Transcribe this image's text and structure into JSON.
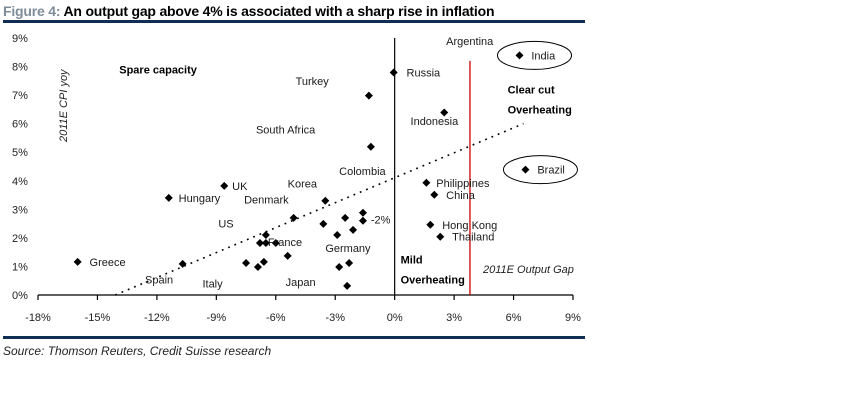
{
  "figure": {
    "number": "Figure 4:",
    "title": "An output gap above 4% is associated with a sharp rise in inflation",
    "source": "Source: Thomson Reuters, Credit Suisse research"
  },
  "colors": {
    "rule": "#0f2e52",
    "threshold_line": "#cc0000",
    "points": "#000000"
  },
  "chart_data": {
    "type": "scatter",
    "title": "An output gap above 4% is associated with a sharp rise in inflation",
    "xlabel": "2011E Output Gap",
    "ylabel": "2011E CPI yoy",
    "xlim": [
      -18,
      9
    ],
    "ylim": [
      0,
      9
    ],
    "x_ticks": [
      -18,
      -15,
      -12,
      -9,
      -6,
      -3,
      0,
      3,
      6,
      9
    ],
    "x_tick_labels": [
      "-18%",
      "-15%",
      "-12%",
      "-9%",
      "-6%",
      "-3%",
      "0%",
      "3%",
      "6%",
      "9%"
    ],
    "y_ticks": [
      0,
      1,
      2,
      3,
      4,
      5,
      6,
      7,
      8,
      9
    ],
    "y_tick_labels": [
      "0%",
      "1%",
      "2%",
      "3%",
      "4%",
      "5%",
      "6%",
      "7%",
      "8%",
      "9%"
    ],
    "grid": false,
    "vertical_reference_line": 0,
    "threshold_line_x": 3.8,
    "trend_line": {
      "x": [
        -14.1,
        6.5
      ],
      "y": [
        0.0,
        6.0
      ],
      "style": "dotted"
    },
    "points": [
      {
        "name": "Greece",
        "x": -16.0,
        "y": 1.16
      },
      {
        "name": "Spain",
        "x": -10.7,
        "y": 1.09
      },
      {
        "name": "Hungary",
        "x": -11.4,
        "y": 3.4
      },
      {
        "name": "UK",
        "x": -8.6,
        "y": 3.82
      },
      {
        "name": "",
        "x": -7.5,
        "y": 1.12
      },
      {
        "name": "",
        "x": -6.9,
        "y": 0.98
      },
      {
        "name": "",
        "x": -6.6,
        "y": 1.16
      },
      {
        "name": "",
        "x": -6.8,
        "y": 1.82
      },
      {
        "name": "",
        "x": -6.5,
        "y": 1.82
      },
      {
        "name": "",
        "x": -6.5,
        "y": 2.1
      },
      {
        "name": "",
        "x": -6.0,
        "y": 1.82
      },
      {
        "name": "",
        "x": -5.4,
        "y": 1.37
      },
      {
        "name": "",
        "x": -5.1,
        "y": 2.7
      },
      {
        "name": "",
        "x": -3.6,
        "y": 2.49
      },
      {
        "name": "",
        "x": -3.5,
        "y": 3.3
      },
      {
        "name": "",
        "x": -2.9,
        "y": 2.1
      },
      {
        "name": "",
        "x": -2.8,
        "y": 0.98
      },
      {
        "name": "",
        "x": -2.3,
        "y": 1.12
      },
      {
        "name": "",
        "x": -2.4,
        "y": 0.32
      },
      {
        "name": "",
        "x": -2.5,
        "y": 2.7
      },
      {
        "name": "",
        "x": -2.1,
        "y": 2.28
      },
      {
        "name": "",
        "x": -1.6,
        "y": 2.88
      },
      {
        "name": "",
        "x": -1.6,
        "y": 2.6
      },
      {
        "name": "",
        "x": -1.3,
        "y": 6.98
      },
      {
        "name": "",
        "x": -1.2,
        "y": 5.19
      },
      {
        "name": "Russia",
        "x": -0.05,
        "y": 7.79
      },
      {
        "name": "",
        "x": 2.5,
        "y": 6.39
      },
      {
        "name": "Philippines",
        "x": 1.6,
        "y": 3.93
      },
      {
        "name": "China",
        "x": 2.0,
        "y": 3.51
      },
      {
        "name": "Hong Kong",
        "x": 1.8,
        "y": 2.46
      },
      {
        "name": "Thailand",
        "x": 2.3,
        "y": 2.04
      },
      {
        "name": "India",
        "x": 6.3,
        "y": 8.39
      },
      {
        "name": "Brazil",
        "x": 6.6,
        "y": 4.39
      }
    ],
    "labels": [
      {
        "text": "Greece",
        "x": -15.4,
        "y": 1.16
      },
      {
        "text": "Spain",
        "x": -12.6,
        "y": 0.55
      },
      {
        "text": "Hungary",
        "x": -10.9,
        "y": 3.4
      },
      {
        "text": "UK",
        "x": -8.2,
        "y": 3.82
      },
      {
        "text": "Denmark",
        "x": -7.6,
        "y": 3.35
      },
      {
        "text": "US",
        "x": -8.9,
        "y": 2.5
      },
      {
        "text": "Korea",
        "x": -5.4,
        "y": 3.9
      },
      {
        "text": "France",
        "x": -6.4,
        "y": 1.85
      },
      {
        "text": "Italy",
        "x": -9.7,
        "y": 0.4
      },
      {
        "text": "Japan",
        "x": -5.5,
        "y": 0.45
      },
      {
        "text": "Germany",
        "x": -3.5,
        "y": 1.65
      },
      {
        "text": "-2%",
        "x": -1.2,
        "y": 2.65
      },
      {
        "text": "Turkey",
        "x": -5.0,
        "y": 7.5
      },
      {
        "text": "South Africa",
        "x": -7.0,
        "y": 5.8
      },
      {
        "text": "Colombia",
        "x": -2.8,
        "y": 4.35
      },
      {
        "text": "Russia",
        "x": 0.6,
        "y": 7.79
      },
      {
        "text": "Argentina",
        "x": 2.6,
        "y": 8.9
      },
      {
        "text": "Indonesia",
        "x": 0.8,
        "y": 6.1
      },
      {
        "text": "Philippines",
        "x": 2.1,
        "y": 3.93
      },
      {
        "text": "China",
        "x": 2.6,
        "y": 3.51
      },
      {
        "text": "Hong Kong",
        "x": 2.4,
        "y": 2.46
      },
      {
        "text": "Thailand",
        "x": 2.9,
        "y": 2.04
      },
      {
        "text": "India",
        "x": 6.9,
        "y": 8.39
      },
      {
        "text": "Brazil",
        "x": 7.2,
        "y": 4.39
      }
    ],
    "annotations": [
      {
        "text": "Spare capacity",
        "x": -13.9,
        "y": 7.9,
        "bold": true
      },
      {
        "text": "Clear cut",
        "x": 5.7,
        "y": 7.2,
        "bold": true
      },
      {
        "text": "Overheating",
        "x": 5.7,
        "y": 6.5,
        "bold": true
      },
      {
        "text": "Mild",
        "x": 0.3,
        "y": 1.25,
        "bold": true
      },
      {
        "text": "Overheating",
        "x": 0.3,
        "y": 0.55,
        "bold": true
      }
    ],
    "highlighted": [
      "India",
      "Brazil"
    ]
  }
}
